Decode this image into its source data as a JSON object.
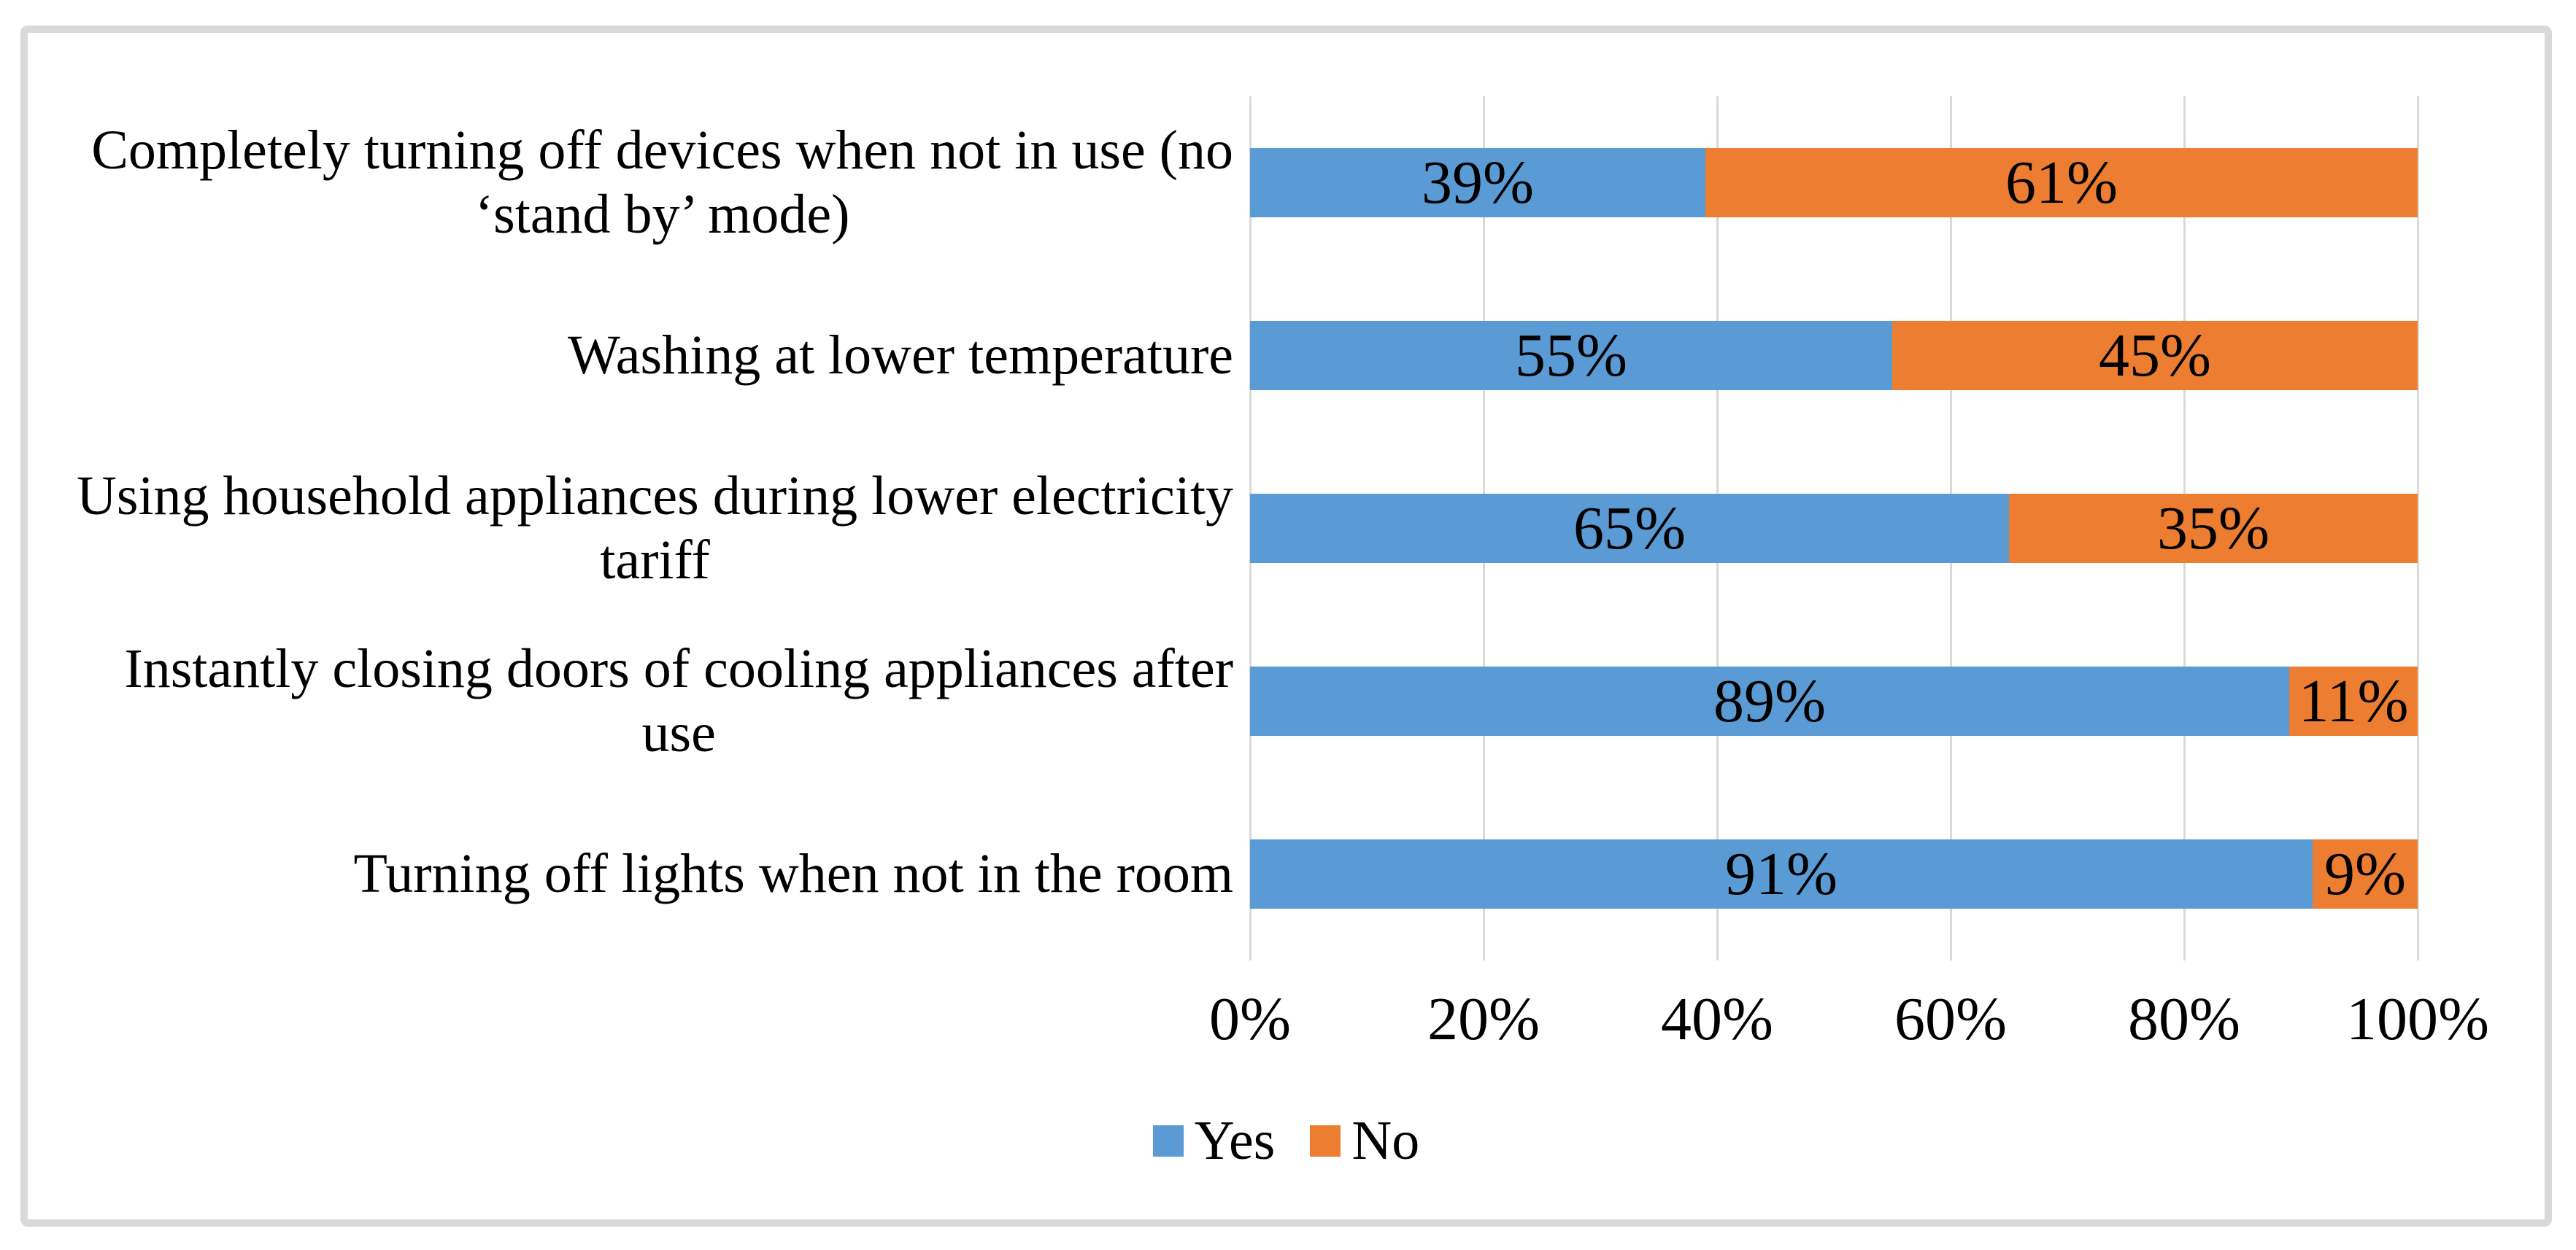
{
  "chart_data": {
    "type": "bar",
    "orientation": "horizontal",
    "stacked": true,
    "title": "",
    "categories": [
      "Completely turning off devices when not in use (no\n‘stand by’ mode)",
      "Washing at lower temperature",
      "Using household appliances during lower electricity\ntariff",
      "Instantly closing doors of cooling appliances after\nuse",
      "Turning off lights when not in the room"
    ],
    "series": [
      {
        "name": "Yes",
        "color": "#5B9BD5",
        "values": [
          39,
          55,
          65,
          89,
          91
        ],
        "labels": [
          "39%",
          "55%",
          "65%",
          "89%",
          "91%"
        ]
      },
      {
        "name": "No",
        "color": "#ED7D31",
        "values": [
          61,
          45,
          35,
          11,
          9
        ],
        "labels": [
          "61%",
          "45%",
          "35%",
          "11%",
          "9%"
        ]
      }
    ],
    "x_axis": {
      "ticks": [
        "0%",
        "20%",
        "40%",
        "60%",
        "80%",
        "100%"
      ],
      "values": [
        0,
        20,
        40,
        60,
        80,
        100
      ],
      "range": [
        0,
        100
      ]
    },
    "grid": "vertical",
    "legend_position": "bottom",
    "gridline_color": "#D9D9D9",
    "frame_border_color": "#D9D9D9",
    "data_label_color": "#000000",
    "text_color": "#000000"
  }
}
